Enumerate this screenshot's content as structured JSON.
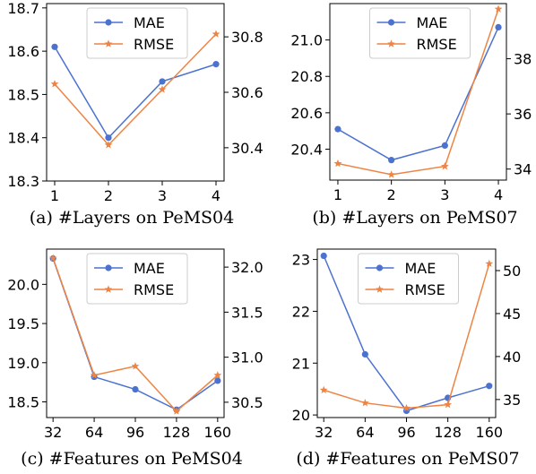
{
  "colors": {
    "mae": "#4C72D0",
    "rmse": "#EE8444"
  },
  "chart_data": [
    {
      "type": "line",
      "caption": "(a) #Layers on PeMS04",
      "categories": [
        "1",
        "2",
        "3",
        "4"
      ],
      "x_positions": [
        1,
        2,
        3,
        4
      ],
      "xlim": [
        0.85,
        4.15
      ],
      "left_ylim": [
        18.3,
        18.71
      ],
      "left_ticks": [
        "18.3",
        "18.4",
        "18.5",
        "18.6",
        "18.7"
      ],
      "right_ylim": [
        30.28,
        30.92
      ],
      "right_ticks": [
        "30.4",
        "30.6",
        "30.8"
      ],
      "legend_position": "top-center",
      "series": [
        {
          "name": "MAE",
          "axis": "left",
          "marker": "circle",
          "values": [
            18.61,
            18.4,
            18.53,
            18.57
          ]
        },
        {
          "name": "RMSE",
          "axis": "right",
          "marker": "star",
          "values": [
            30.63,
            30.41,
            30.61,
            30.81
          ]
        }
      ]
    },
    {
      "type": "line",
      "caption": "(b) #Layers on PeMS07",
      "categories": [
        "1",
        "2",
        "3",
        "4"
      ],
      "x_positions": [
        1,
        2,
        3,
        4
      ],
      "xlim": [
        0.85,
        4.15
      ],
      "left_ylim": [
        20.23,
        21.2
      ],
      "left_ticks": [
        "20.4",
        "20.6",
        "20.8",
        "21.0"
      ],
      "right_ylim": [
        33.6,
        40.0
      ],
      "right_ticks": [
        "34",
        "36",
        "38"
      ],
      "legend_position": "top-center",
      "series": [
        {
          "name": "MAE",
          "axis": "left",
          "marker": "circle",
          "values": [
            20.51,
            20.34,
            20.42,
            21.07
          ]
        },
        {
          "name": "RMSE",
          "axis": "right",
          "marker": "star",
          "values": [
            34.2,
            33.8,
            34.1,
            39.8
          ]
        }
      ]
    },
    {
      "type": "line",
      "caption": "(c) #Features on PeMS04",
      "categories": [
        "32",
        "64",
        "96",
        "128",
        "160"
      ],
      "x_positions": [
        32,
        64,
        96,
        128,
        160
      ],
      "xlim": [
        27,
        165
      ],
      "left_ylim": [
        18.3,
        20.45
      ],
      "left_ticks": [
        "18.5",
        "19.0",
        "19.5",
        "20.0"
      ],
      "right_ylim": [
        30.33,
        32.2
      ],
      "right_ticks": [
        "30.5",
        "31.0",
        "31.5",
        "32.0"
      ],
      "legend_position": "top-center",
      "series": [
        {
          "name": "MAE",
          "axis": "left",
          "marker": "circle",
          "values": [
            20.33,
            18.82,
            18.66,
            18.4,
            18.77
          ]
        },
        {
          "name": "RMSE",
          "axis": "right",
          "marker": "star",
          "values": [
            32.1,
            30.8,
            30.9,
            30.4,
            30.8
          ]
        }
      ]
    },
    {
      "type": "line",
      "caption": "(d) #Features on PeMS07",
      "categories": [
        "32",
        "64",
        "96",
        "128",
        "160"
      ],
      "x_positions": [
        32,
        64,
        96,
        128,
        160
      ],
      "xlim": [
        27,
        165
      ],
      "left_ylim": [
        19.95,
        23.2
      ],
      "left_ticks": [
        "20",
        "21",
        "22",
        "23"
      ],
      "right_ylim": [
        32.9,
        52.5
      ],
      "right_ticks": [
        "35",
        "40",
        "45",
        "50"
      ],
      "legend_position": "top-center",
      "series": [
        {
          "name": "MAE",
          "axis": "left",
          "marker": "circle",
          "values": [
            23.07,
            21.17,
            20.08,
            20.33,
            20.56
          ]
        },
        {
          "name": "RMSE",
          "axis": "right",
          "marker": "star",
          "values": [
            36.1,
            34.6,
            34.0,
            34.4,
            50.8
          ]
        }
      ]
    }
  ]
}
